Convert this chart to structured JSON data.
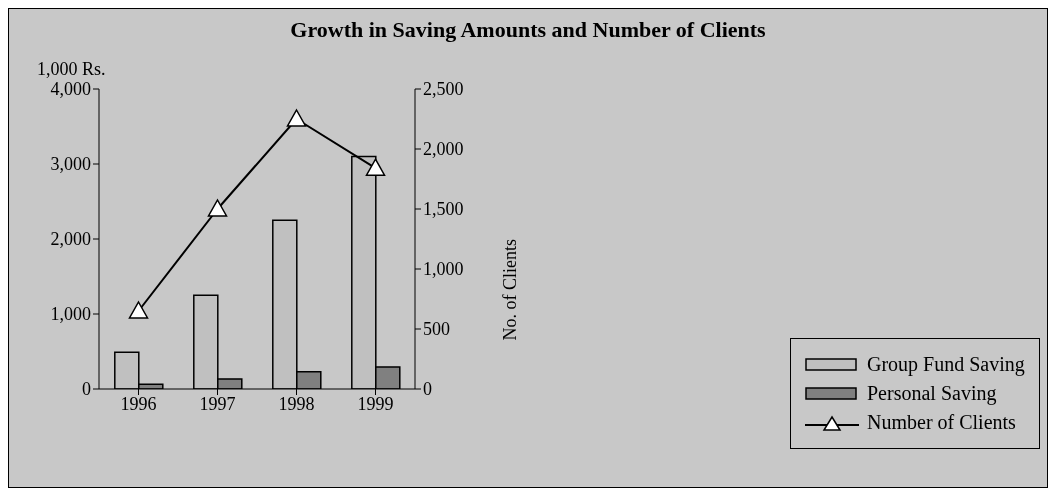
{
  "chart_data": {
    "type": "bar",
    "title": "Growth in Saving Amounts and Number of Clients",
    "ylabel": "1,000 Rs.",
    "y2label": "No. of Clients",
    "categories": [
      "1996",
      "1997",
      "1998",
      "1999"
    ],
    "series": [
      {
        "name": "Group Fund Saving",
        "color": "#c0c0c0",
        "values": [
          490,
          1250,
          2250,
          3100
        ]
      },
      {
        "name": "Personal Saving",
        "color": "#808080",
        "values": [
          65,
          135,
          230,
          295
        ]
      },
      {
        "name": "Number of Clients",
        "type": "line",
        "axis": "y2",
        "color": "#000000",
        "marker": "triangle",
        "values": [
          650,
          1500,
          2250,
          1840
        ]
      }
    ],
    "ylim": [
      0,
      4000
    ],
    "yticks": [
      {
        "value": 0,
        "label": "0"
      },
      {
        "value": 1000,
        "label": "1,000"
      },
      {
        "value": 2000,
        "label": "2,000"
      },
      {
        "value": 3000,
        "label": "3,000"
      },
      {
        "value": 4000,
        "label": "4,000"
      }
    ],
    "y2lim": [
      0,
      2500
    ],
    "y2ticks": [
      {
        "value": 0,
        "label": "0"
      },
      {
        "value": 500,
        "label": "500"
      },
      {
        "value": 1000,
        "label": "1,000"
      },
      {
        "value": 1500,
        "label": "1,500"
      },
      {
        "value": 2000,
        "label": "2,000"
      },
      {
        "value": 2500,
        "label": "2,500"
      }
    ],
    "grid": false,
    "legend": "bottom right"
  }
}
